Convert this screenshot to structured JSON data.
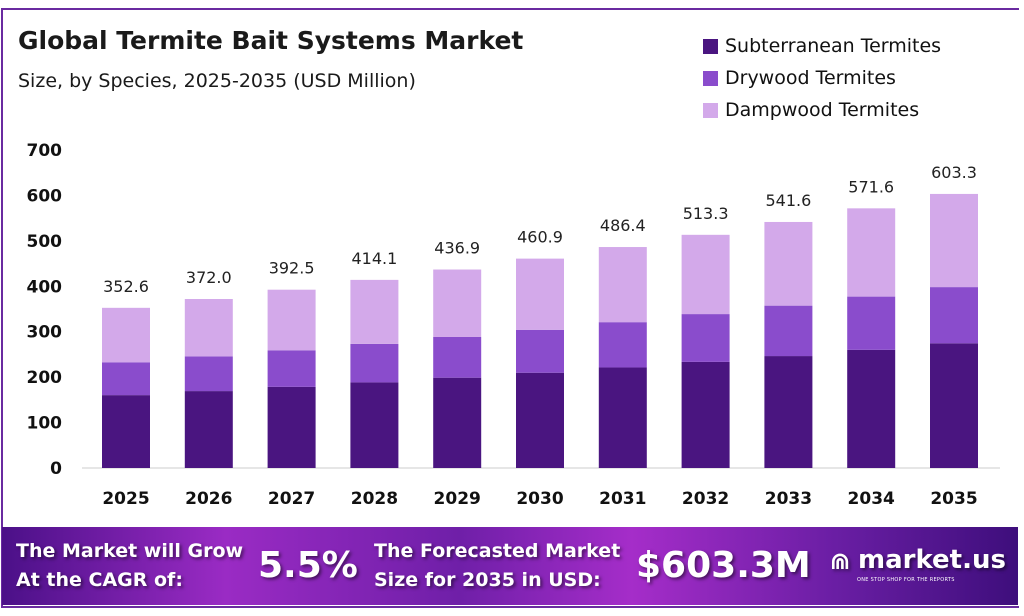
{
  "chart_data": {
    "type": "bar",
    "stacked": true,
    "title": "Global Termite Bait Systems Market",
    "subtitle": "Size, by Species, 2025-2035 (USD Million)",
    "categories": [
      "2025",
      "2026",
      "2027",
      "2028",
      "2029",
      "2030",
      "2031",
      "2032",
      "2033",
      "2034",
      "2035"
    ],
    "series": [
      {
        "name": "Subterranean Termites",
        "color": "#4a1580",
        "values": [
          160.4,
          169.3,
          178.6,
          188.4,
          198.8,
          209.7,
          221.3,
          233.6,
          246.4,
          260.1,
          274.5
        ]
      },
      {
        "name": "Drywood Termites",
        "color": "#8a4ccc",
        "values": [
          72.3,
          76.3,
          80.5,
          84.9,
          89.6,
          94.5,
          99.7,
          105.2,
          111.0,
          117.2,
          123.7
        ]
      },
      {
        "name": "Dampwood Termites",
        "color": "#d3a9ea",
        "values": [
          119.9,
          126.4,
          133.4,
          140.8,
          148.5,
          156.7,
          165.4,
          174.5,
          184.2,
          194.3,
          205.1
        ]
      }
    ],
    "totals": [
      "352.6",
      "372.0",
      "392.5",
      "414.1",
      "436.9",
      "460.9",
      "486.4",
      "513.3",
      "541.6",
      "571.6",
      "603.3"
    ],
    "yticks": [
      "0",
      "100",
      "200",
      "300",
      "400",
      "500",
      "600",
      "700"
    ],
    "ylim": [
      0,
      700
    ],
    "grid": false,
    "legend": "top-right",
    "xlabel": "",
    "ylabel": ""
  },
  "banner": {
    "cagr_text_1": "The Market will Grow",
    "cagr_text_2": "At the CAGR of:",
    "cagr_value": "5.5%",
    "forecast_text_1": "The Forecasted Market",
    "forecast_text_2": "Size for 2035 in USD:",
    "forecast_value": "$603.3M",
    "logo_text": "market.us",
    "logo_tagline": "ONE STOP SHOP FOR THE REPORTS"
  }
}
